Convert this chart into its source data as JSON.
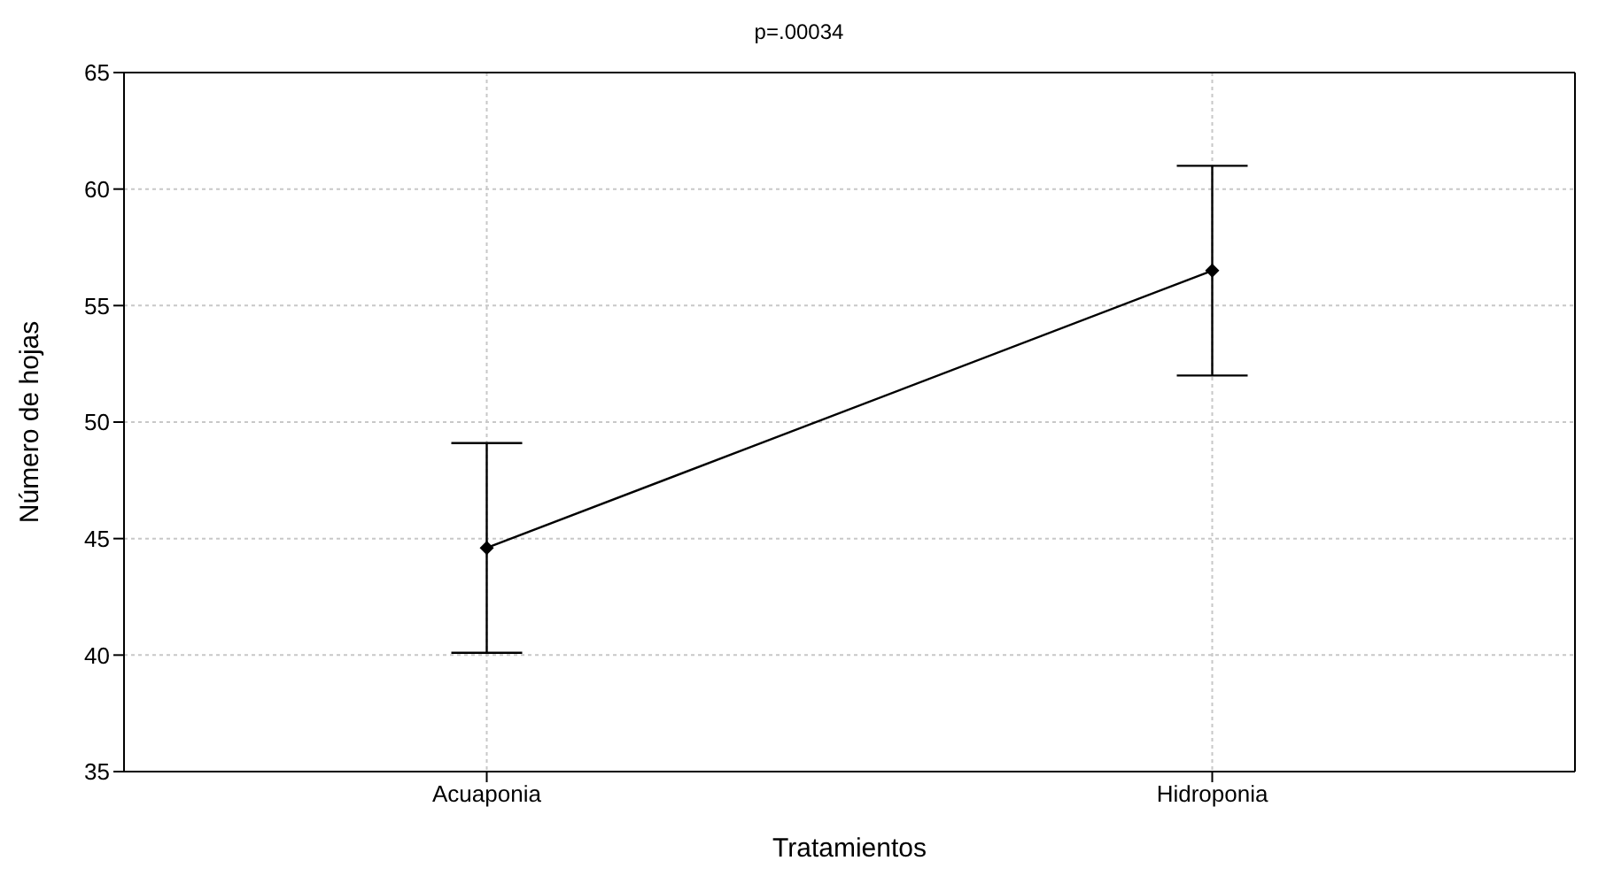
{
  "chart_data": {
    "type": "line",
    "title": "p=.00034",
    "xlabel": "Tratamientos",
    "ylabel": "Número de hojas",
    "categories": [
      "Acuaponia",
      "Hidroponia"
    ],
    "series": [
      {
        "color": "#000000",
        "values": [
          44.6,
          56.5
        ],
        "errors": [
          4.5,
          4.5
        ]
      }
    ],
    "ylim": [
      35,
      65
    ],
    "yticks": [
      35,
      40,
      45,
      50,
      55,
      60,
      65
    ],
    "grid": true,
    "marker": "diamond",
    "line_style": "solid",
    "legend": false
  }
}
